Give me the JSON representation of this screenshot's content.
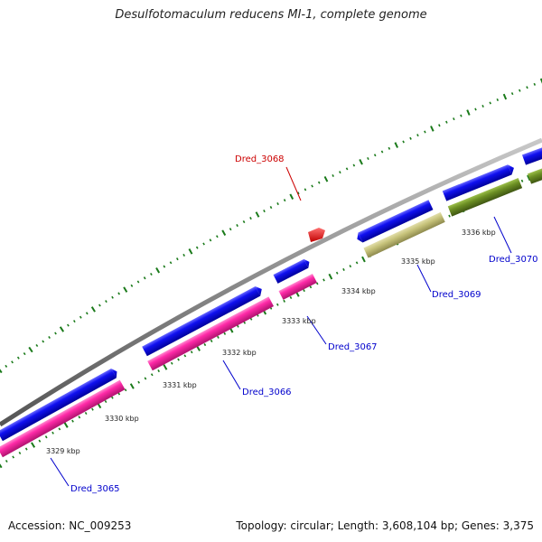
{
  "title": "Desulfotomaculum reducens MI-1, complete genome",
  "footer": {
    "accession": "Accession: NC_009253",
    "summary": "Topology: circular; Length: 3,608,104 bp; Genes: 3,375"
  },
  "ticks": [
    {
      "kbp": 3329,
      "label": "3329 kbp"
    },
    {
      "kbp": 3330,
      "label": "3330 kbp"
    },
    {
      "kbp": 3331,
      "label": "3331 kbp"
    },
    {
      "kbp": 3332,
      "label": "3332 kbp"
    },
    {
      "kbp": 3333,
      "label": "3333 kbp"
    },
    {
      "kbp": 3334,
      "label": "3334 kbp"
    },
    {
      "kbp": 3335,
      "label": "3335 kbp"
    },
    {
      "kbp": 3336,
      "label": "3336 kbp"
    }
  ],
  "gene_labels": [
    {
      "name": "Dred_3065",
      "color": "#0000cc"
    },
    {
      "name": "Dred_3066",
      "color": "#0000cc"
    },
    {
      "name": "Dred_3067",
      "color": "#0000cc"
    },
    {
      "name": "Dred_3068",
      "color": "#cc0000"
    },
    {
      "name": "Dred_3069",
      "color": "#0000cc"
    },
    {
      "name": "Dred_3070",
      "color": "#0000cc"
    }
  ],
  "colors": {
    "backbone": "#8a8a8a",
    "cds": "#1010f0",
    "highlight": "#ff1010",
    "feature_magenta": "#ff2aa8",
    "feature_khaki": "#c6c27a",
    "feature_olive": "#6b8e23",
    "ticks": "#1a7a1a"
  }
}
